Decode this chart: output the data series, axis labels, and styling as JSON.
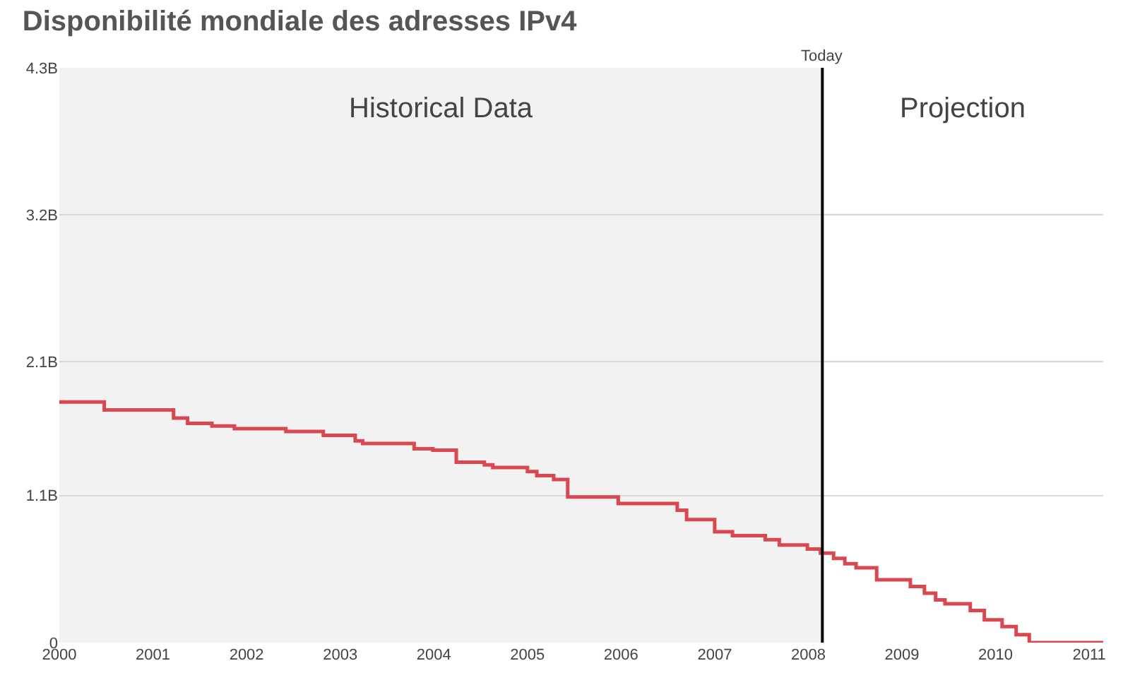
{
  "chart_data": {
    "type": "step",
    "title": "Disponibilité mondiale des adresses IPv4",
    "x": [
      2000.0,
      2000.48,
      2001.22,
      2001.37,
      2001.63,
      2001.87,
      2002.42,
      2002.82,
      2003.16,
      2003.24,
      2003.79,
      2003.99,
      2004.24,
      2004.54,
      2004.63,
      2005.0,
      2005.1,
      2005.28,
      2005.43,
      2005.97,
      2006.6,
      2006.7,
      2007.0,
      2007.19,
      2007.54,
      2007.69,
      2007.99,
      2008.13,
      2008.27,
      2008.39,
      2008.51,
      2008.73,
      2009.09,
      2009.24,
      2009.36,
      2009.46,
      2009.73,
      2009.88,
      2010.07,
      2010.22,
      2010.36,
      2011.15
    ],
    "series": [
      {
        "color": "#d9474f",
        "values": [
          1.8,
          1.74,
          1.68,
          1.64,
          1.62,
          1.6,
          1.58,
          1.55,
          1.51,
          1.49,
          1.45,
          1.44,
          1.35,
          1.33,
          1.31,
          1.28,
          1.25,
          1.22,
          1.09,
          1.04,
          0.99,
          0.92,
          0.83,
          0.8,
          0.77,
          0.73,
          0.7,
          0.67,
          0.63,
          0.59,
          0.56,
          0.47,
          0.42,
          0.37,
          0.32,
          0.29,
          0.24,
          0.17,
          0.12,
          0.06,
          0,
          0
        ]
      }
    ],
    "xlim": [
      2000,
      2011.15
    ],
    "xticks": [
      2000,
      2001,
      2002,
      2003,
      2004,
      2005,
      2006,
      2007,
      2008,
      2009,
      2010,
      2011
    ],
    "ylim": [
      0,
      4.3
    ],
    "yticks": [
      0,
      {
        "value": 1.1,
        "label": "1.1B"
      },
      {
        "value": 2.1,
        "label": "2.1B"
      },
      {
        "value": 3.2,
        "label": "3.2B"
      },
      {
        "value": 4.3,
        "label": "4.3B"
      }
    ],
    "bands": [
      {
        "axis": "x",
        "from": 2000,
        "to": 2008.15,
        "label": "Historical Data",
        "color": "#f2f2f2"
      }
    ],
    "annotations": [
      "Projection"
    ],
    "ref_lines": [
      {
        "axis": "x",
        "value": 2008.15,
        "label": "Today",
        "color": "#000000"
      }
    ],
    "grid": "y"
  }
}
